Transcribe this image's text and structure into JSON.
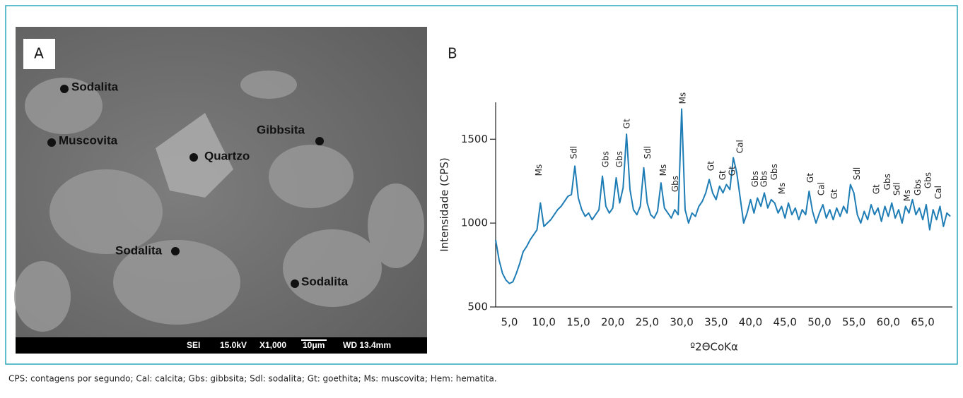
{
  "panel_a": {
    "label": "A",
    "minerals": [
      "Sodalita",
      "Muscovita",
      "Quartzo",
      "Gibbsita",
      "Sodalita",
      "Sodalita"
    ],
    "info_bar": [
      "SEI",
      "15.0kV",
      "X1,000",
      "10μm",
      "WD 13.4mm"
    ]
  },
  "chart_data": {
    "type": "line",
    "panel_label": "B",
    "y_label": "Intensidade (CPS)",
    "x_label": "º2ΘCoKα",
    "color": "#1f7db5",
    "xlim": [
      3,
      69.3
    ],
    "ylim": [
      500,
      1720
    ],
    "xticks": [
      {
        "value": 5,
        "label": "5,0"
      },
      {
        "value": 10,
        "label": "10,0"
      },
      {
        "value": 15,
        "label": "15,0"
      },
      {
        "value": 20,
        "label": "20,0"
      },
      {
        "value": 25,
        "label": "25,0"
      },
      {
        "value": 30,
        "label": "30,0"
      },
      {
        "value": 35,
        "label": "35,0"
      },
      {
        "value": 40,
        "label": "40,0"
      },
      {
        "value": 45,
        "label": "45,0"
      },
      {
        "value": 50,
        "label": "50,0"
      },
      {
        "value": 55,
        "label": "55,0"
      },
      {
        "value": 60,
        "label": "60,0"
      },
      {
        "value": 65,
        "label": "65,0"
      }
    ],
    "yticks": [
      500,
      1000,
      1500
    ],
    "x": [
      3.0,
      3.5,
      4.0,
      4.5,
      5.0,
      5.5,
      6.0,
      6.5,
      7.0,
      7.5,
      8.0,
      8.5,
      9.0,
      9.5,
      10.0,
      10.5,
      11.0,
      11.5,
      12.0,
      12.5,
      13.0,
      13.5,
      14.0,
      14.5,
      15.0,
      15.5,
      16.0,
      16.5,
      17.0,
      17.5,
      18.0,
      18.5,
      19.0,
      19.5,
      20.0,
      20.5,
      21.0,
      21.5,
      22.0,
      22.5,
      23.0,
      23.5,
      24.0,
      24.5,
      25.0,
      25.5,
      26.0,
      26.5,
      27.0,
      27.5,
      28.0,
      28.5,
      29.0,
      29.5,
      30.0,
      30.5,
      31.0,
      31.5,
      32.0,
      32.5,
      33.0,
      33.5,
      34.0,
      34.5,
      35.0,
      35.5,
      36.0,
      36.5,
      37.0,
      37.5,
      38.0,
      38.5,
      39.0,
      39.5,
      40.0,
      40.5,
      41.0,
      41.5,
      42.0,
      42.5,
      43.0,
      43.5,
      44.0,
      44.5,
      45.0,
      45.5,
      46.0,
      46.5,
      47.0,
      47.5,
      48.0,
      48.5,
      49.0,
      49.5,
      50.0,
      50.5,
      51.0,
      51.5,
      52.0,
      52.5,
      53.0,
      53.5,
      54.0,
      54.5,
      55.0,
      55.5,
      56.0,
      56.5,
      57.0,
      57.5,
      58.0,
      58.5,
      59.0,
      59.5,
      60.0,
      60.5,
      61.0,
      61.5,
      62.0,
      62.5,
      63.0,
      63.5,
      64.0,
      64.5,
      65.0,
      65.5,
      66.0,
      66.5,
      67.0,
      67.5,
      68.0,
      68.5,
      69.0
    ],
    "values": [
      900,
      780,
      700,
      660,
      640,
      650,
      700,
      760,
      830,
      860,
      900,
      930,
      960,
      1120,
      980,
      1000,
      1020,
      1050,
      1080,
      1100,
      1130,
      1160,
      1170,
      1340,
      1150,
      1080,
      1040,
      1060,
      1020,
      1050,
      1080,
      1280,
      1100,
      1060,
      1090,
      1270,
      1120,
      1210,
      1530,
      1200,
      1080,
      1050,
      1100,
      1330,
      1120,
      1050,
      1030,
      1070,
      1240,
      1090,
      1060,
      1030,
      1080,
      1050,
      1680,
      1080,
      1000,
      1060,
      1040,
      1100,
      1130,
      1180,
      1260,
      1180,
      1140,
      1220,
      1180,
      1230,
      1200,
      1390,
      1300,
      1150,
      1000,
      1060,
      1140,
      1060,
      1150,
      1100,
      1180,
      1090,
      1140,
      1120,
      1060,
      1100,
      1030,
      1120,
      1050,
      1090,
      1020,
      1080,
      1050,
      1190,
      1070,
      1000,
      1060,
      1110,
      1030,
      1080,
      1020,
      1090,
      1040,
      1100,
      1060,
      1230,
      1180,
      1050,
      1000,
      1070,
      1020,
      1110,
      1050,
      1090,
      1010,
      1100,
      1040,
      1120,
      1030,
      1080,
      1000,
      1100,
      1060,
      1140,
      1050,
      1090,
      1020,
      1110,
      960,
      1080,
      1020,
      1100,
      980,
      1060,
      1040
    ],
    "annotations": [
      {
        "text": "Ms",
        "x": 9.3,
        "y": 1281
      },
      {
        "text": "Sdl",
        "x": 14.4,
        "y": 1382
      },
      {
        "text": "Gbs",
        "x": 19.0,
        "y": 1332
      },
      {
        "text": "Gbs",
        "x": 21.0,
        "y": 1332
      },
      {
        "text": "Gt",
        "x": 22.1,
        "y": 1563
      },
      {
        "text": "Sdl",
        "x": 25.1,
        "y": 1382
      },
      {
        "text": "Ms",
        "x": 27.4,
        "y": 1281
      },
      {
        "text": "Gbs",
        "x": 29.1,
        "y": 1185
      },
      {
        "text": "Ms",
        "x": 30.2,
        "y": 1710
      },
      {
        "text": "Gt",
        "x": 34.3,
        "y": 1311
      },
      {
        "text": "Gt",
        "x": 36.0,
        "y": 1256
      },
      {
        "text": "Gt",
        "x": 37.4,
        "y": 1281
      },
      {
        "text": "Cal",
        "x": 38.5,
        "y": 1416
      },
      {
        "text": "Gbs",
        "x": 40.7,
        "y": 1214
      },
      {
        "text": "Gbs",
        "x": 42.0,
        "y": 1214
      },
      {
        "text": "Gbs",
        "x": 43.5,
        "y": 1256
      },
      {
        "text": "Ms",
        "x": 44.6,
        "y": 1172
      },
      {
        "text": "Gt",
        "x": 48.7,
        "y": 1240
      },
      {
        "text": "Cal",
        "x": 50.3,
        "y": 1164
      },
      {
        "text": "Gt",
        "x": 52.2,
        "y": 1143
      },
      {
        "text": "Sdl",
        "x": 55.5,
        "y": 1256
      },
      {
        "text": "Gt",
        "x": 58.3,
        "y": 1172
      },
      {
        "text": "Gbs",
        "x": 59.9,
        "y": 1197
      },
      {
        "text": "Sdl",
        "x": 61.3,
        "y": 1164
      },
      {
        "text": "Ms",
        "x": 62.8,
        "y": 1130
      },
      {
        "text": "Gbs",
        "x": 64.3,
        "y": 1164
      },
      {
        "text": "Gbs",
        "x": 65.8,
        "y": 1206
      },
      {
        "text": "Cal",
        "x": 67.3,
        "y": 1143
      }
    ]
  },
  "caption": "CPS: contagens por segundo; Cal: calcita; Gbs: gibbsita; Sdl: sodalita; Gt: goethita; Ms: muscovita; Hem: hematita."
}
